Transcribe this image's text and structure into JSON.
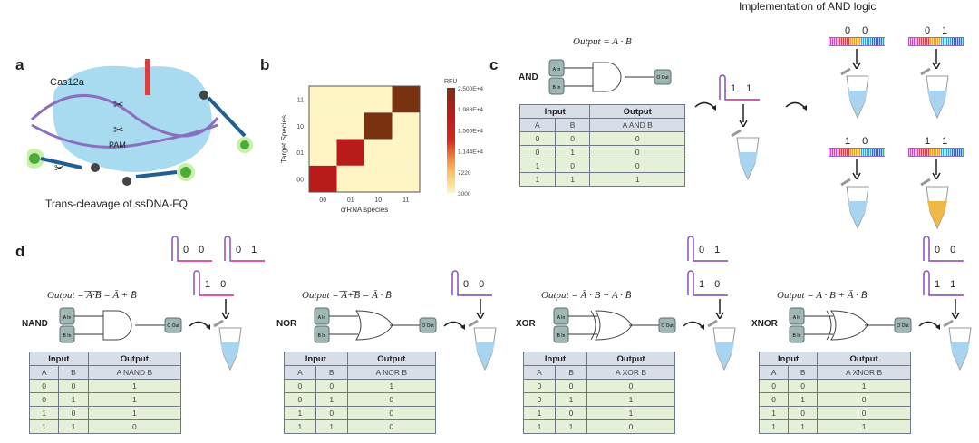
{
  "panel_a": {
    "label": "a",
    "enzyme": "Cas12a",
    "pam": "PAM",
    "caption": "Trans-cleavage of ssDNA-FQ",
    "fluor": "F",
    "quencher": "Q"
  },
  "panel_b": {
    "label": "b"
  },
  "chart_data": {
    "type": "heatmap",
    "title": "",
    "xlabel": "crRNA species",
    "ylabel": "Target Species",
    "x": [
      "00",
      "01",
      "10",
      "11"
    ],
    "y": [
      "00",
      "01",
      "10",
      "11"
    ],
    "values": [
      [
        20000,
        3000,
        3000,
        3000
      ],
      [
        3000,
        20000,
        3000,
        3000
      ],
      [
        3000,
        3000,
        25000,
        3000
      ],
      [
        3000,
        3000,
        3000,
        25000
      ]
    ],
    "colorbar": {
      "title": "RFU",
      "ticks": [
        "2.500E+4",
        "1.988E+4",
        "1.566E+4",
        "1.144E+4",
        "7220",
        "3000"
      ],
      "range": [
        3000,
        25000
      ]
    }
  },
  "panel_c": {
    "label": "c",
    "gate": "AND",
    "formula": "Output = A · B",
    "impl_title": "Implementation of AND logic",
    "single_input": "1 1",
    "tubes": [
      {
        "input": "0 0",
        "fluorescent": false
      },
      {
        "input": "0 1",
        "fluorescent": false
      },
      {
        "input": "1 0",
        "fluorescent": false
      },
      {
        "input": "1 1",
        "fluorescent": true
      }
    ],
    "table": {
      "h_input": "Input",
      "h_output": "Output",
      "a": "A",
      "b": "B",
      "out": "A AND B",
      "rows": [
        [
          "0",
          "0",
          "0"
        ],
        [
          "0",
          "1",
          "0"
        ],
        [
          "1",
          "0",
          "0"
        ],
        [
          "1",
          "1",
          "1"
        ]
      ]
    }
  },
  "panel_d": {
    "label": "d",
    "gates": [
      {
        "name": "NAND",
        "formula": "Output = ̅A̅·̅B̅ = Ā + B̄",
        "seqs": [
          "0 0",
          "0 1",
          "1 0"
        ],
        "out": "A NAND B",
        "rows": [
          [
            "0",
            "0",
            "1"
          ],
          [
            "0",
            "1",
            "1"
          ],
          [
            "1",
            "0",
            "1"
          ],
          [
            "1",
            "1",
            "0"
          ]
        ]
      },
      {
        "name": "NOR",
        "formula": "Output = ̅A̅+̅B̅ = Ā · B̄",
        "seqs": [
          "0 0"
        ],
        "out": "A NOR B",
        "rows": [
          [
            "0",
            "0",
            "1"
          ],
          [
            "0",
            "1",
            "0"
          ],
          [
            "1",
            "0",
            "0"
          ],
          [
            "1",
            "1",
            "0"
          ]
        ]
      },
      {
        "name": "XOR",
        "formula": "Output = Ā · B + A · B̄",
        "seqs": [
          "0 1",
          "1 0"
        ],
        "out": "A XOR B",
        "rows": [
          [
            "0",
            "0",
            "0"
          ],
          [
            "0",
            "1",
            "1"
          ],
          [
            "1",
            "0",
            "1"
          ],
          [
            "1",
            "1",
            "0"
          ]
        ]
      },
      {
        "name": "XNOR",
        "formula": "Output = A · B + Ā · B̄",
        "seqs": [
          "0 0",
          "1 1"
        ],
        "out": "A XNOR B",
        "rows": [
          [
            "0",
            "0",
            "1"
          ],
          [
            "0",
            "1",
            "0"
          ],
          [
            "1",
            "0",
            "0"
          ],
          [
            "1",
            "1",
            "1"
          ]
        ]
      }
    ],
    "h_input": "Input",
    "h_output": "Output",
    "a": "A",
    "b": "B",
    "gate_in_a": "A In",
    "gate_in_b": "B In",
    "gate_out": "O Out"
  },
  "colors": {
    "tube_liquid": "#a9d4ef",
    "tube_fluor": "#f2b845",
    "table_header": "#d8dee8",
    "table_row": "#e6f0d8",
    "cas_blob": "#a8daf0"
  }
}
